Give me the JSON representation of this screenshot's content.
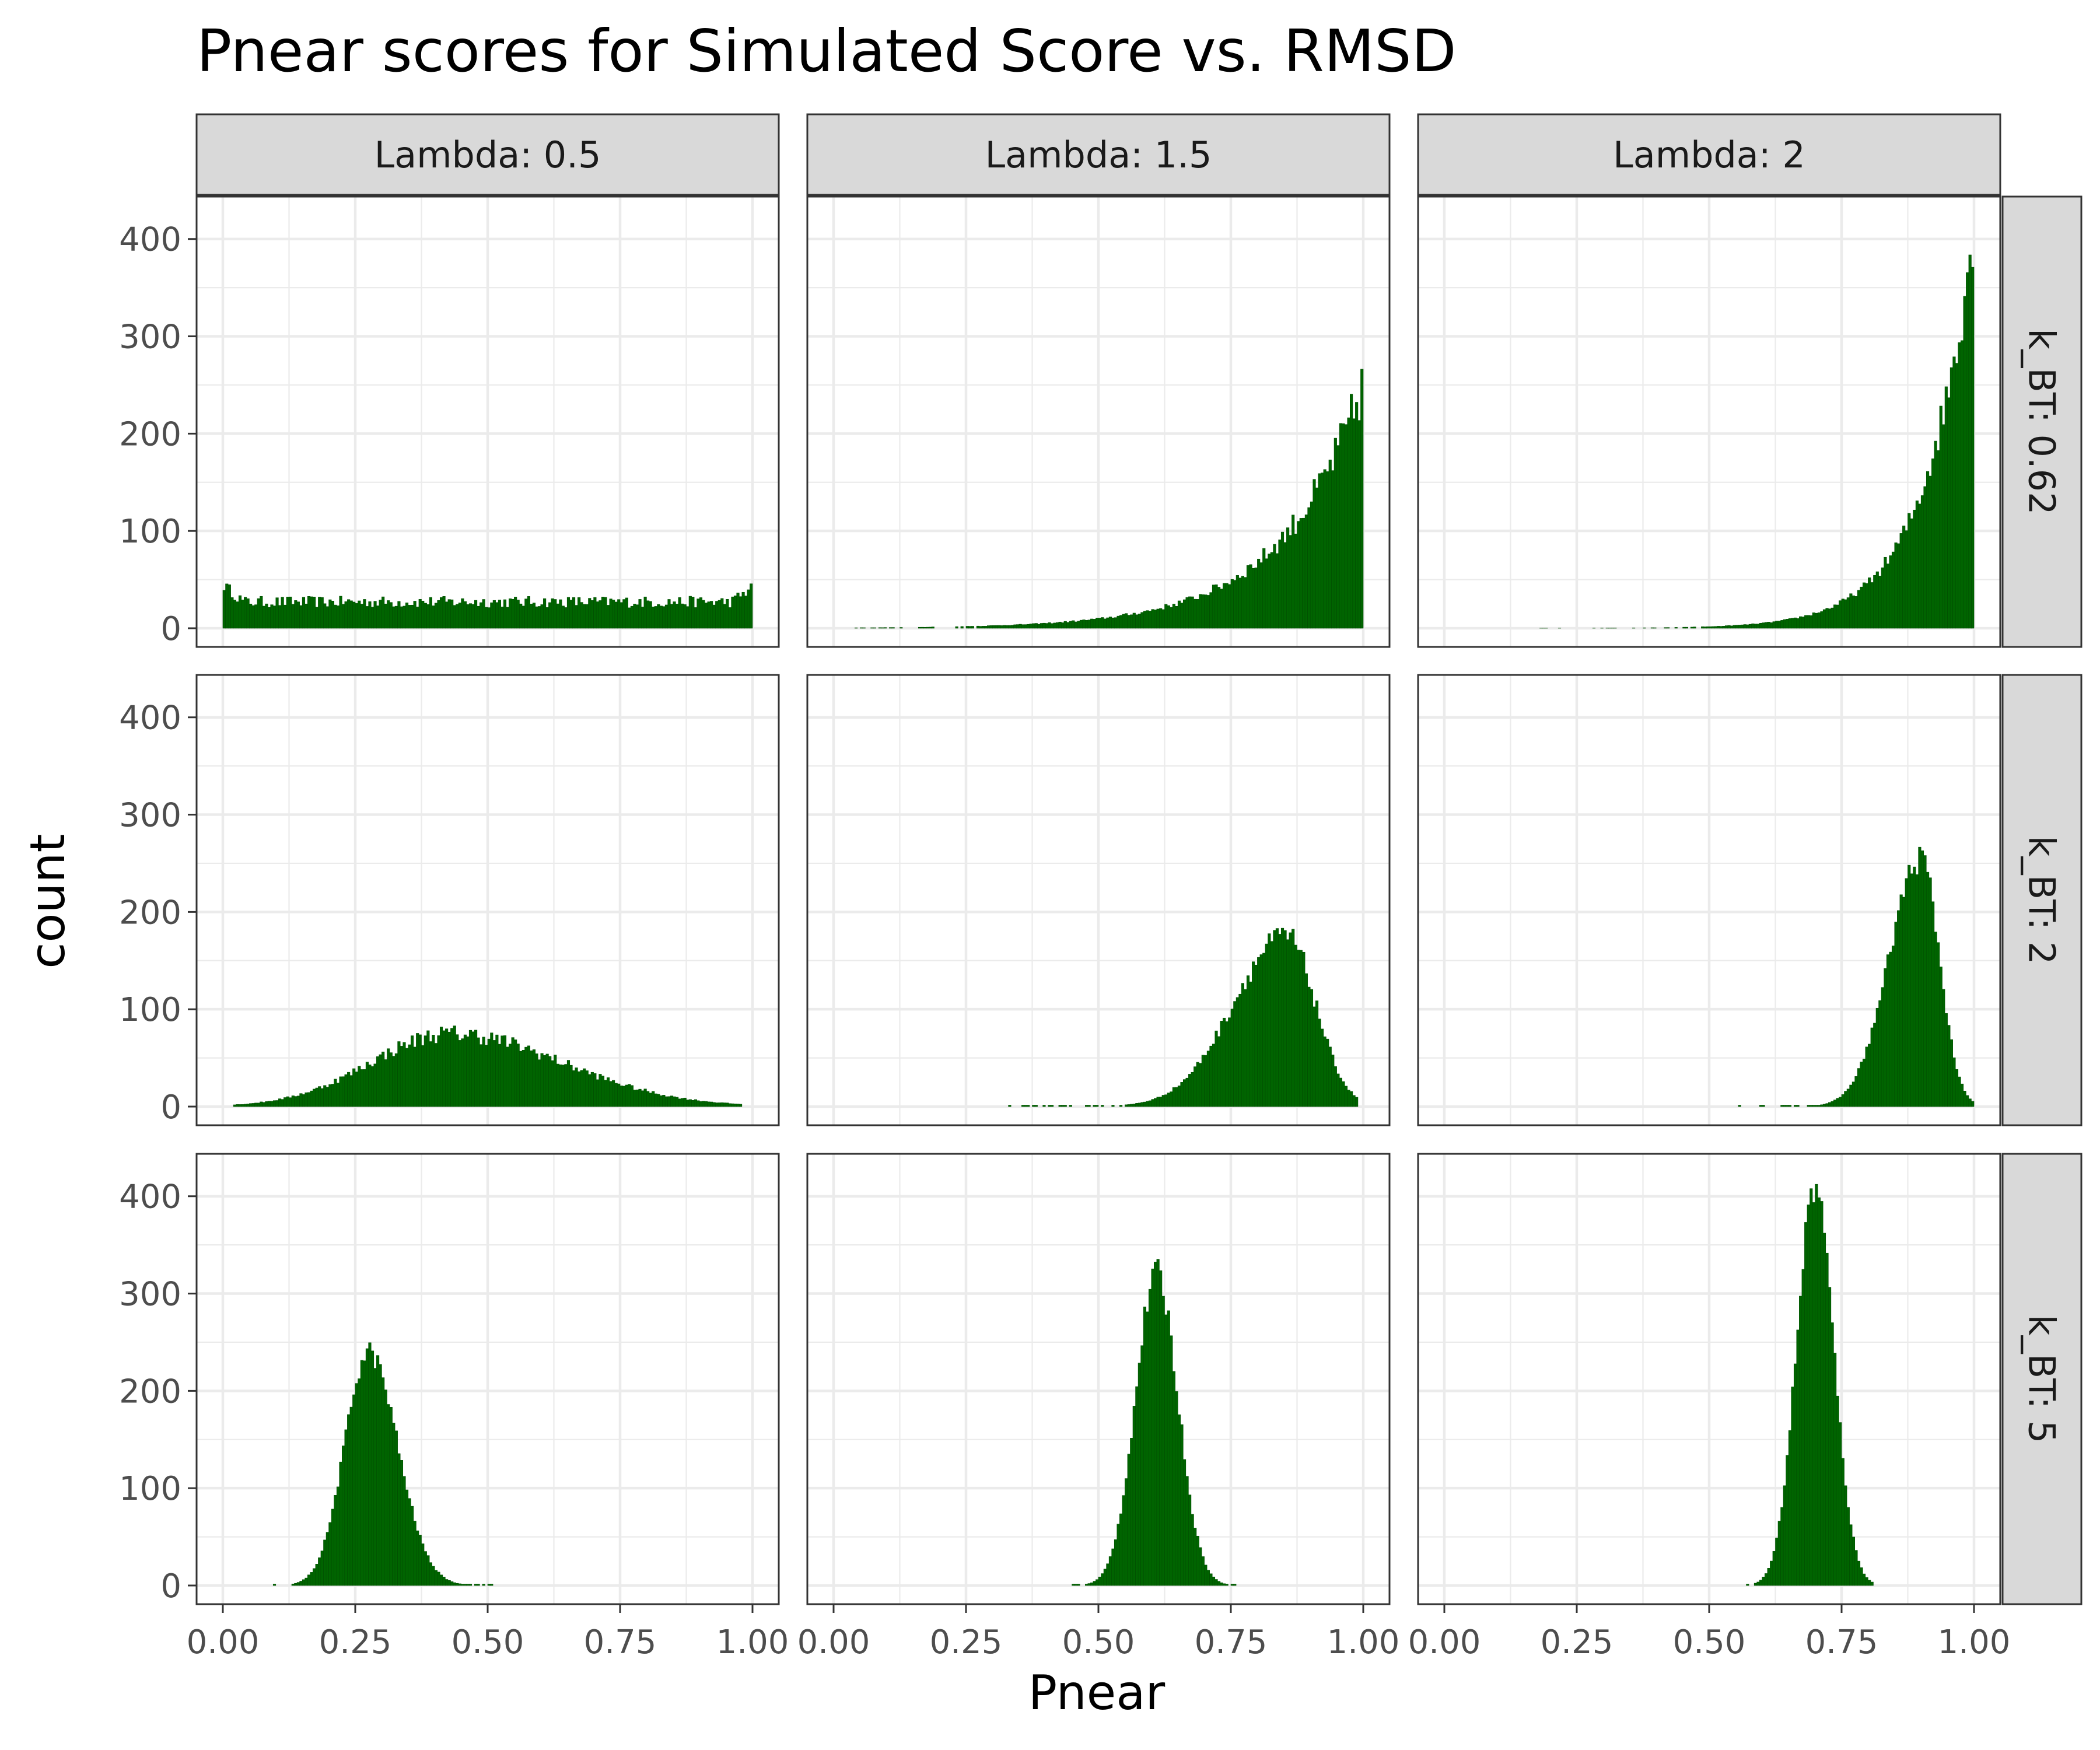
{
  "chart_data": {
    "type": "bar",
    "title": "Pnear scores for Simulated Score vs. RMSD",
    "xlabel": "Pnear",
    "ylabel": "count",
    "xlim": [
      0,
      1
    ],
    "ylim": [
      0,
      440
    ],
    "x_ticks": [
      "0.00",
      "0.25",
      "0.50",
      "0.75",
      "1.00"
    ],
    "y_ticks": [
      "0",
      "100",
      "200",
      "300",
      "400"
    ],
    "col_facets": [
      "Lambda: 0.5",
      "Lambda: 1.5",
      "Lambda: 2"
    ],
    "row_facets": [
      "k_BT: 0.62",
      "k_BT: 2",
      "k_BT: 5"
    ],
    "bar_color": "#006400",
    "grid": true,
    "bins": 200,
    "panels": [
      {
        "row": 0,
        "col": 0,
        "dist": "uniform",
        "level": 27,
        "edge_left": 45,
        "edge_right": 42,
        "min_x": 0.0,
        "max_x": 1.0,
        "noise": 6
      },
      {
        "row": 0,
        "col": 1,
        "dist": "exp_rise",
        "start_x": 0.04,
        "end_x": 1.0,
        "peak": 250,
        "rate": 6.5,
        "noise": 0.12
      },
      {
        "row": 0,
        "col": 2,
        "dist": "exp_rise",
        "start_x": 0.18,
        "end_x": 1.0,
        "peak": 420,
        "rate": 11,
        "noise": 0.1
      },
      {
        "row": 1,
        "col": 0,
        "dist": "skewnormal",
        "center": 0.43,
        "sd_left": 0.15,
        "sd_right": 0.21,
        "peak": 75,
        "min_x": 0.02,
        "max_x": 0.98,
        "noise": 0.12
      },
      {
        "row": 1,
        "col": 1,
        "dist": "skewnormal",
        "center": 0.855,
        "sd_left": 0.1,
        "sd_right": 0.055,
        "peak": 175,
        "min_x": 0.33,
        "max_x": 0.99,
        "noise": 0.08
      },
      {
        "row": 1,
        "col": 2,
        "dist": "skewnormal",
        "center": 0.9,
        "sd_left": 0.06,
        "sd_right": 0.035,
        "peak": 255,
        "min_x": 0.53,
        "max_x": 1.0,
        "noise": 0.06
      },
      {
        "row": 2,
        "col": 0,
        "dist": "skewnormal",
        "center": 0.275,
        "sd_left": 0.045,
        "sd_right": 0.055,
        "peak": 240,
        "min_x": 0.09,
        "max_x": 0.52,
        "noise": 0.05
      },
      {
        "row": 2,
        "col": 1,
        "dist": "skewnormal",
        "center": 0.61,
        "sd_left": 0.04,
        "sd_right": 0.04,
        "peak": 320,
        "min_x": 0.45,
        "max_x": 0.76,
        "noise": 0.05
      },
      {
        "row": 2,
        "col": 2,
        "dist": "skewnormal",
        "center": 0.7,
        "sd_left": 0.035,
        "sd_right": 0.035,
        "peak": 410,
        "min_x": 0.57,
        "max_x": 0.81,
        "noise": 0.05
      }
    ]
  }
}
